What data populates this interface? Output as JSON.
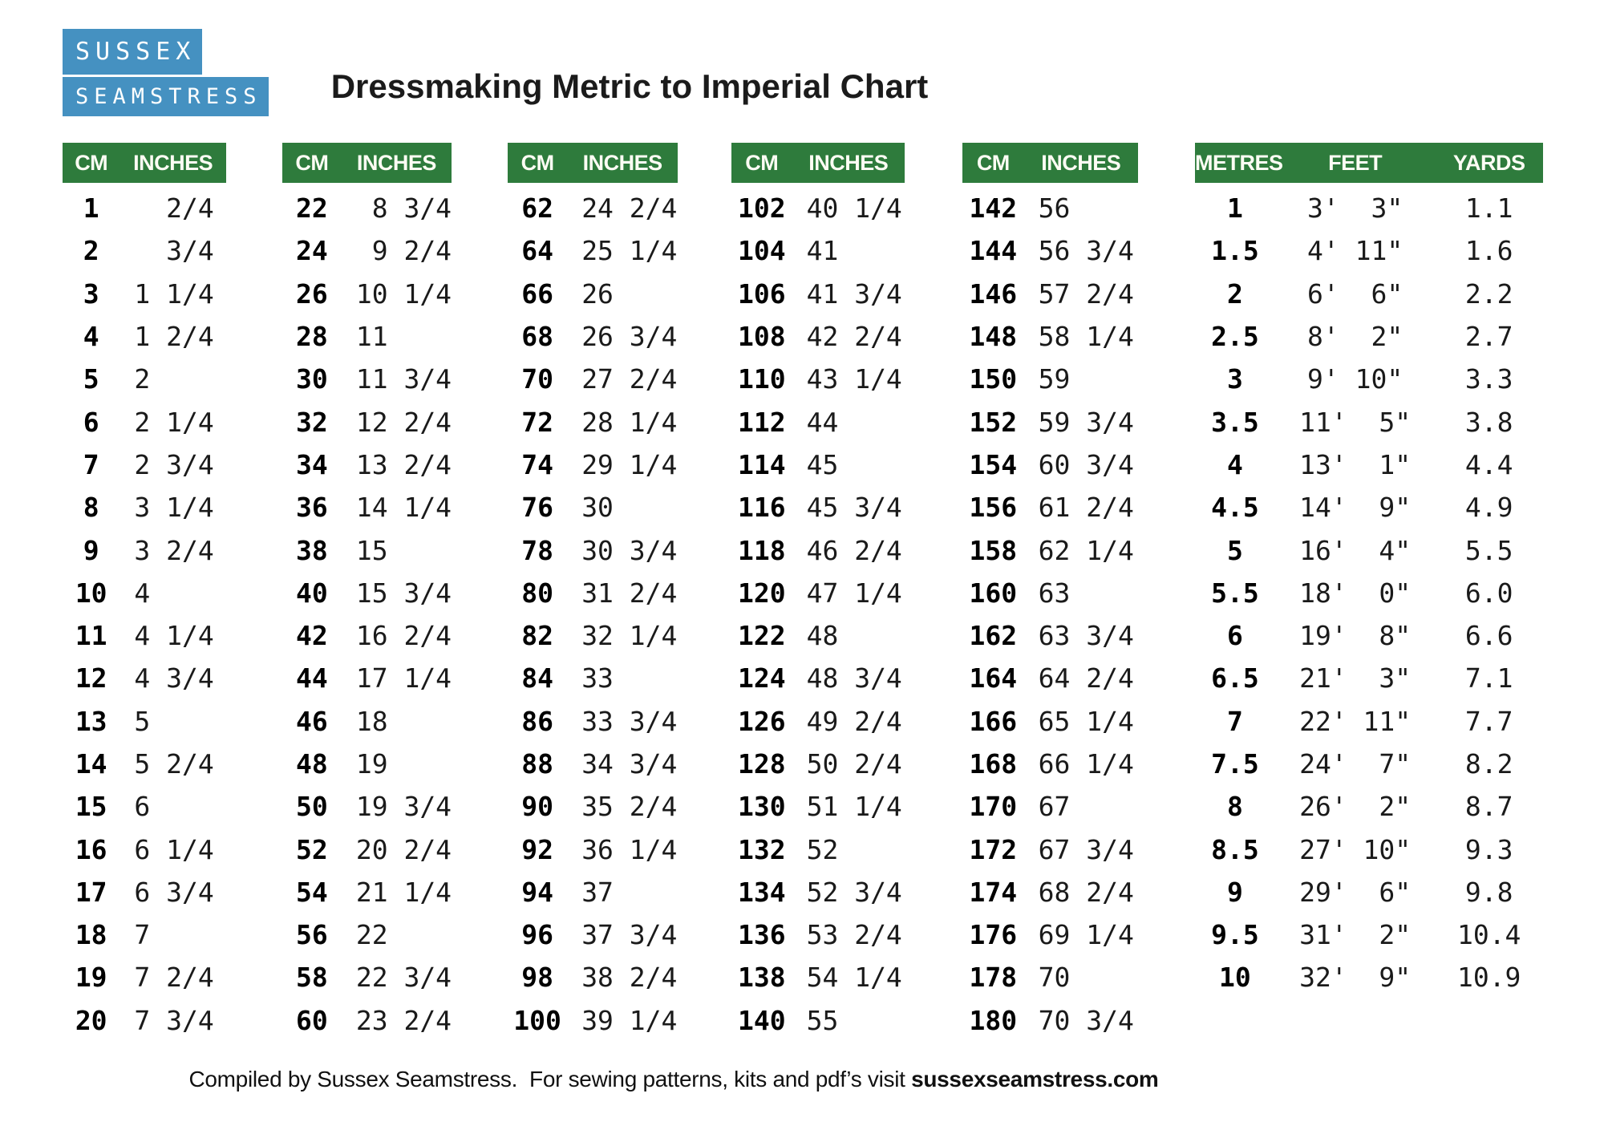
{
  "page": {
    "title": "Dressmaking Metric to Imperial Chart",
    "footer_prefix": "Compiled by Sussex Seamstress.  For sewing patterns, kits and pdf’s visit ",
    "footer_link": "sussexseamstress.com"
  },
  "logo": {
    "line1": "SUSSEX",
    "line2": "SEAMSTRESS"
  },
  "colors": {
    "header_green": "#2e7b3c",
    "logo_blue": "#4591c1"
  },
  "cm_tables": [
    {
      "headers": [
        "CM",
        "INCHES"
      ],
      "rows": [
        [
          "1",
          "  2/4"
        ],
        [
          "2",
          "  3/4"
        ],
        [
          "3",
          "1 1/4"
        ],
        [
          "4",
          "1 2/4"
        ],
        [
          "5",
          "2"
        ],
        [
          "6",
          "2 1/4"
        ],
        [
          "7",
          "2 3/4"
        ],
        [
          "8",
          "3 1/4"
        ],
        [
          "9",
          "3 2/4"
        ],
        [
          "10",
          "4"
        ],
        [
          "11",
          "4 1/4"
        ],
        [
          "12",
          "4 3/4"
        ],
        [
          "13",
          "5"
        ],
        [
          "14",
          "5 2/4"
        ],
        [
          "15",
          "6"
        ],
        [
          "16",
          "6 1/4"
        ],
        [
          "17",
          "6 3/4"
        ],
        [
          "18",
          "7"
        ],
        [
          "19",
          "7 2/4"
        ],
        [
          "20",
          "7 3/4"
        ]
      ]
    },
    {
      "headers": [
        "CM",
        "INCHES"
      ],
      "rows": [
        [
          "22",
          " 8 3/4"
        ],
        [
          "24",
          " 9 2/4"
        ],
        [
          "26",
          "10 1/4"
        ],
        [
          "28",
          "11"
        ],
        [
          "30",
          "11 3/4"
        ],
        [
          "32",
          "12 2/4"
        ],
        [
          "34",
          "13 2/4"
        ],
        [
          "36",
          "14 1/4"
        ],
        [
          "38",
          "15"
        ],
        [
          "40",
          "15 3/4"
        ],
        [
          "42",
          "16 2/4"
        ],
        [
          "44",
          "17 1/4"
        ],
        [
          "46",
          "18"
        ],
        [
          "48",
          "19"
        ],
        [
          "50",
          "19 3/4"
        ],
        [
          "52",
          "20 2/4"
        ],
        [
          "54",
          "21 1/4"
        ],
        [
          "56",
          "22"
        ],
        [
          "58",
          "22 3/4"
        ],
        [
          "60",
          "23 2/4"
        ]
      ]
    },
    {
      "headers": [
        "CM",
        "INCHES"
      ],
      "rows": [
        [
          "62",
          "24 2/4"
        ],
        [
          "64",
          "25 1/4"
        ],
        [
          "66",
          "26"
        ],
        [
          "68",
          "26 3/4"
        ],
        [
          "70",
          "27 2/4"
        ],
        [
          "72",
          "28 1/4"
        ],
        [
          "74",
          "29 1/4"
        ],
        [
          "76",
          "30"
        ],
        [
          "78",
          "30 3/4"
        ],
        [
          "80",
          "31 2/4"
        ],
        [
          "82",
          "32 1/4"
        ],
        [
          "84",
          "33"
        ],
        [
          "86",
          "33 3/4"
        ],
        [
          "88",
          "34 3/4"
        ],
        [
          "90",
          "35 2/4"
        ],
        [
          "92",
          "36 1/4"
        ],
        [
          "94",
          "37"
        ],
        [
          "96",
          "37 3/4"
        ],
        [
          "98",
          "38 2/4"
        ],
        [
          "100",
          "39 1/4"
        ]
      ]
    },
    {
      "headers": [
        "CM",
        "INCHES"
      ],
      "rows": [
        [
          "102",
          "40 1/4"
        ],
        [
          "104",
          "41"
        ],
        [
          "106",
          "41 3/4"
        ],
        [
          "108",
          "42 2/4"
        ],
        [
          "110",
          "43 1/4"
        ],
        [
          "112",
          "44"
        ],
        [
          "114",
          "45"
        ],
        [
          "116",
          "45 3/4"
        ],
        [
          "118",
          "46 2/4"
        ],
        [
          "120",
          "47 1/4"
        ],
        [
          "122",
          "48"
        ],
        [
          "124",
          "48 3/4"
        ],
        [
          "126",
          "49 2/4"
        ],
        [
          "128",
          "50 2/4"
        ],
        [
          "130",
          "51 1/4"
        ],
        [
          "132",
          "52"
        ],
        [
          "134",
          "52 3/4"
        ],
        [
          "136",
          "53 2/4"
        ],
        [
          "138",
          "54 1/4"
        ],
        [
          "140",
          "55"
        ]
      ]
    },
    {
      "headers": [
        "CM",
        "INCHES"
      ],
      "rows": [
        [
          "142",
          "56"
        ],
        [
          "144",
          "56 3/4"
        ],
        [
          "146",
          "57 2/4"
        ],
        [
          "148",
          "58 1/4"
        ],
        [
          "150",
          "59"
        ],
        [
          "152",
          "59 3/4"
        ],
        [
          "154",
          "60 3/4"
        ],
        [
          "156",
          "61 2/4"
        ],
        [
          "158",
          "62 1/4"
        ],
        [
          "160",
          "63"
        ],
        [
          "162",
          "63 3/4"
        ],
        [
          "164",
          "64 2/4"
        ],
        [
          "166",
          "65 1/4"
        ],
        [
          "168",
          "66 1/4"
        ],
        [
          "170",
          "67"
        ],
        [
          "172",
          "67 3/4"
        ],
        [
          "174",
          "68 2/4"
        ],
        [
          "176",
          "69 1/4"
        ],
        [
          "178",
          "70"
        ],
        [
          "180",
          "70 3/4"
        ]
      ]
    }
  ],
  "metres_table": {
    "headers": [
      "METRES",
      "FEET",
      "YARDS"
    ],
    "rows": [
      [
        "1",
        "3'  3\"",
        "1.1"
      ],
      [
        "1.5",
        "4' 11\"",
        "1.6"
      ],
      [
        "2",
        "6'  6\"",
        "2.2"
      ],
      [
        "2.5",
        "8'  2\"",
        "2.7"
      ],
      [
        "3",
        "9' 10\"",
        "3.3"
      ],
      [
        "3.5",
        "11'  5\"",
        "3.8"
      ],
      [
        "4",
        "13'  1\"",
        "4.4"
      ],
      [
        "4.5",
        "14'  9\"",
        "4.9"
      ],
      [
        "5",
        "16'  4\"",
        "5.5"
      ],
      [
        "5.5",
        "18'  0\"",
        "6.0"
      ],
      [
        "6",
        "19'  8\"",
        "6.6"
      ],
      [
        "6.5",
        "21'  3\"",
        "7.1"
      ],
      [
        "7",
        "22' 11\"",
        "7.7"
      ],
      [
        "7.5",
        "24'  7\"",
        "8.2"
      ],
      [
        "8",
        "26'  2\"",
        "8.7"
      ],
      [
        "8.5",
        "27' 10\"",
        "9.3"
      ],
      [
        "9",
        "29'  6\"",
        "9.8"
      ],
      [
        "9.5",
        "31'  2\"",
        "10.4"
      ],
      [
        "10",
        "32'  9\"",
        "10.9"
      ]
    ]
  }
}
